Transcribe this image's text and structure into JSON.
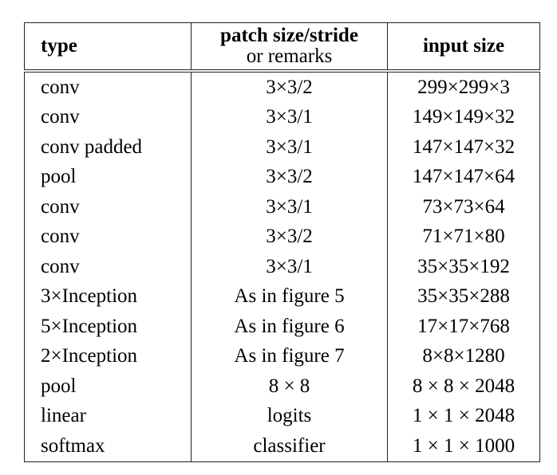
{
  "table": {
    "header": {
      "type": "type",
      "patch": "patch size/stride",
      "patch_sub": "or remarks",
      "input": "input size"
    },
    "rows": [
      [
        "conv",
        "3×3/2",
        "299×299×3"
      ],
      [
        "conv",
        "3×3/1",
        "149×149×32"
      ],
      [
        "conv padded",
        "3×3/1",
        "147×147×32"
      ],
      [
        "pool",
        "3×3/2",
        "147×147×64"
      ],
      [
        "conv",
        "3×3/1",
        "73×73×64"
      ],
      [
        "conv",
        "3×3/2",
        "71×71×80"
      ],
      [
        "conv",
        "3×3/1",
        "35×35×192"
      ],
      [
        "3×Inception",
        "As in figure 5",
        "35×35×288"
      ],
      [
        "5×Inception",
        "As in figure 6",
        "17×17×768"
      ],
      [
        "2×Inception",
        "As in figure 7",
        "8×8×1280"
      ],
      [
        "pool",
        "8 × 8",
        "8 × 8 × 2048"
      ],
      [
        "linear",
        "logits",
        "1 × 1 × 2048"
      ],
      [
        "softmax",
        "classifier",
        "1 × 1 × 1000"
      ]
    ]
  }
}
